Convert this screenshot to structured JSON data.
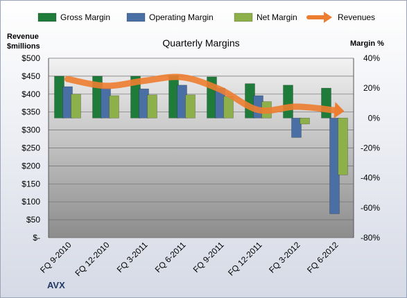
{
  "chart_data": {
    "type": "bar",
    "title": "Quarterly Margins",
    "company": "AVX",
    "y_left_label_line1": "Revenue",
    "y_left_label_line2": "$millions",
    "y_right_label": "Margin %",
    "categories": [
      "FQ 9-2010",
      "FQ 12-2010",
      "FQ 3-2011",
      "FQ 6-2011",
      "FQ 9-2011",
      "FQ 12-2011",
      "FQ 3-2012",
      "FQ 6-2012"
    ],
    "ylim_left": [
      0,
      500
    ],
    "ylim_right": [
      -80,
      40
    ],
    "left_ticks": [
      "$-",
      "$50",
      "$100",
      "$150",
      "$200",
      "$250",
      "$300",
      "$350",
      "$400",
      "$450",
      "$500"
    ],
    "right_ticks": [
      "-80%",
      "-60%",
      "-40%",
      "-20%",
      "0%",
      "20%",
      "40%"
    ],
    "legend_position": "top",
    "grid": true,
    "series": [
      {
        "name": "Gross Margin",
        "axis": "right",
        "kind": "bar",
        "color": "#1e7b3a",
        "values": [
          28,
          28,
          28,
          28.5,
          27.5,
          23,
          22,
          20
        ]
      },
      {
        "name": "Operating Margin",
        "axis": "right",
        "kind": "bar",
        "color": "#4a6fa5",
        "values": [
          21,
          20,
          19.5,
          22,
          20,
          15,
          -13,
          -64
        ]
      },
      {
        "name": "Net Margin",
        "axis": "right",
        "kind": "bar",
        "color": "#8db04a",
        "values": [
          16,
          15,
          15.5,
          15.5,
          14.5,
          11,
          -4,
          -38
        ]
      },
      {
        "name": "Revenues",
        "axis": "left",
        "kind": "line",
        "color": "#ed7d31",
        "values": [
          442,
          423,
          437,
          447,
          413,
          356,
          365,
          355
        ]
      }
    ]
  }
}
